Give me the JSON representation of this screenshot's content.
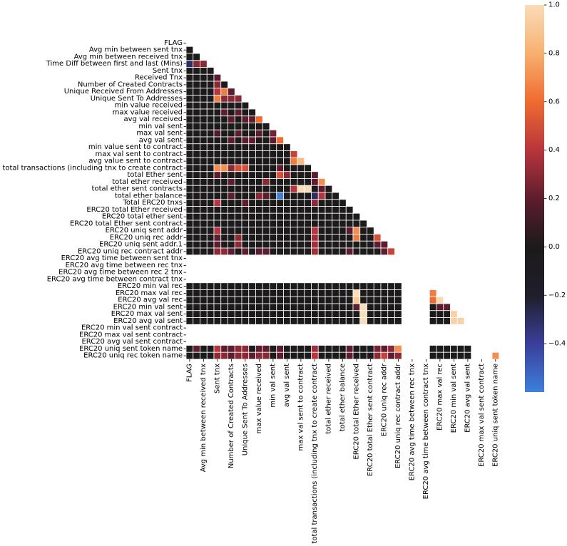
{
  "chart_data": {
    "type": "heatmap",
    "title": "",
    "variables": [
      "FLAG",
      "Avg min between sent tnx",
      "Avg min between received tnx",
      "Time Diff between first and last (Mins)",
      "Sent tnx",
      "Received Tnx",
      "Number of Created Contracts",
      "Unique Received From Addresses",
      "Unique Sent To Addresses",
      "min value received",
      "max value received",
      "avg val received",
      "min val sent",
      "max val sent",
      "avg val sent",
      "min value sent to contract",
      "max val sent to contract",
      "avg value sent to contract",
      "total transactions (including tnx to create contract",
      "total Ether sent",
      "total ether received",
      "total ether sent contracts",
      "total ether balance",
      "Total ERC20 tnxs",
      "ERC20 total Ether received",
      "ERC20 total ether sent",
      "ERC20 total Ether sent contract",
      "ERC20 uniq sent addr",
      "ERC20 uniq rec addr",
      "ERC20 uniq sent addr.1",
      "ERC20 uniq rec contract addr",
      "ERC20 avg time between sent tnx",
      "ERC20 avg time between rec tnx",
      "ERC20 avg time between rec 2 tnx",
      "ERC20 avg time between contract tnx",
      "ERC20 min val rec",
      "ERC20 max val rec",
      "ERC20 avg val rec",
      "ERC20 min val sent",
      "ERC20 max val sent",
      "ERC20 avg val sent",
      "ERC20 min val sent contract",
      "ERC20 max val sent contract",
      "ERC20 avg val sent contract",
      "ERC20 uniq sent token name",
      "ERC20 uniq rec token name"
    ],
    "x_tick_indices": [
      0,
      2,
      4,
      6,
      8,
      10,
      12,
      14,
      16,
      18,
      20,
      22,
      24,
      26,
      28,
      30,
      32,
      34,
      36,
      38,
      40,
      42,
      44
    ],
    "y_tick_indices": [
      0,
      1,
      2,
      3,
      4,
      5,
      6,
      7,
      8,
      9,
      10,
      11,
      12,
      13,
      14,
      15,
      16,
      17,
      18,
      19,
      20,
      21,
      22,
      23,
      24,
      25,
      26,
      27,
      28,
      29,
      30,
      31,
      32,
      33,
      34,
      35,
      36,
      37,
      38,
      39,
      40,
      41,
      42,
      43,
      44,
      45
    ],
    "mask": "upper triangle including diagonal",
    "nan_variables": [
      31,
      32,
      33,
      34,
      41,
      42,
      43
    ],
    "default_value": 0.0,
    "cells": [
      [
        3,
        0,
        -0.3
      ],
      [
        3,
        1,
        0.3
      ],
      [
        3,
        2,
        0.3
      ],
      [
        5,
        4,
        0.2
      ],
      [
        6,
        4,
        0.3
      ],
      [
        7,
        4,
        0.4
      ],
      [
        7,
        5,
        0.65
      ],
      [
        7,
        6,
        0.2
      ],
      [
        8,
        4,
        0.65
      ],
      [
        8,
        5,
        0.3
      ],
      [
        8,
        6,
        0.3
      ],
      [
        8,
        7,
        0.3
      ],
      [
        10,
        5,
        0.2
      ],
      [
        10,
        7,
        0.2
      ],
      [
        11,
        6,
        0.2
      ],
      [
        11,
        8,
        0.2
      ],
      [
        11,
        9,
        0.2
      ],
      [
        11,
        10,
        0.6
      ],
      [
        13,
        4,
        0.15
      ],
      [
        13,
        7,
        0.2
      ],
      [
        13,
        10,
        0.2
      ],
      [
        13,
        12,
        0.25
      ],
      [
        14,
        6,
        0.2
      ],
      [
        14,
        8,
        0.2
      ],
      [
        14,
        9,
        0.2
      ],
      [
        14,
        12,
        0.2
      ],
      [
        14,
        13,
        0.6
      ],
      [
        16,
        15,
        0.45
      ],
      [
        17,
        15,
        0.65
      ],
      [
        17,
        16,
        0.85
      ],
      [
        18,
        4,
        0.7
      ],
      [
        18,
        5,
        0.7
      ],
      [
        18,
        6,
        0.3
      ],
      [
        18,
        7,
        0.5
      ],
      [
        18,
        8,
        0.5
      ],
      [
        18,
        13,
        0.2
      ],
      [
        19,
        4,
        0.2
      ],
      [
        19,
        13,
        0.5
      ],
      [
        19,
        14,
        0.3
      ],
      [
        19,
        18,
        0.2
      ],
      [
        20,
        6,
        0.2
      ],
      [
        20,
        11,
        0.3
      ],
      [
        20,
        18,
        0.2
      ],
      [
        20,
        19,
        0.7
      ],
      [
        21,
        15,
        0.4
      ],
      [
        21,
        16,
        1.0
      ],
      [
        21,
        17,
        1.0
      ],
      [
        21,
        19,
        0.2
      ],
      [
        22,
        6,
        0.2
      ],
      [
        22,
        10,
        0.3
      ],
      [
        22,
        11,
        0.2
      ],
      [
        22,
        13,
        -0.6
      ],
      [
        22,
        18,
        -0.3
      ],
      [
        22,
        19,
        0.4
      ],
      [
        23,
        4,
        0.4
      ],
      [
        23,
        8,
        0.2
      ],
      [
        23,
        18,
        0.3
      ],
      [
        27,
        4,
        0.4
      ],
      [
        27,
        18,
        0.4
      ],
      [
        27,
        23,
        0.2
      ],
      [
        27,
        24,
        0.7
      ],
      [
        28,
        4,
        0.2
      ],
      [
        28,
        7,
        0.3
      ],
      [
        28,
        18,
        0.35
      ],
      [
        28,
        24,
        0.65
      ],
      [
        28,
        27,
        0.5
      ],
      [
        29,
        4,
        0.2
      ],
      [
        29,
        7,
        0.3
      ],
      [
        29,
        18,
        0.35
      ],
      [
        29,
        27,
        0.2
      ],
      [
        29,
        28,
        0.2
      ],
      [
        30,
        4,
        0.3
      ],
      [
        30,
        5,
        0.3
      ],
      [
        30,
        6,
        0.2
      ],
      [
        30,
        8,
        0.2
      ],
      [
        30,
        10,
        0.2
      ],
      [
        30,
        11,
        0.2
      ],
      [
        30,
        18,
        0.35
      ],
      [
        30,
        23,
        0.2
      ],
      [
        30,
        28,
        0.2
      ],
      [
        30,
        29,
        0.45
      ],
      [
        36,
        24,
        1.0
      ],
      [
        36,
        35,
        0.65
      ],
      [
        37,
        24,
        0.9
      ],
      [
        37,
        35,
        0.6
      ],
      [
        37,
        36,
        0.98
      ],
      [
        38,
        24,
        0.2
      ],
      [
        38,
        25,
        1.0
      ],
      [
        38,
        36,
        0.2
      ],
      [
        38,
        37,
        0.2
      ],
      [
        39,
        25,
        1.0
      ],
      [
        39,
        38,
        0.95
      ],
      [
        40,
        25,
        1.0
      ],
      [
        40,
        38,
        0.95
      ],
      [
        40,
        39,
        0.95
      ],
      [
        44,
        1,
        0.2
      ],
      [
        44,
        4,
        0.4
      ],
      [
        44,
        5,
        0.2
      ],
      [
        44,
        6,
        0.2
      ],
      [
        44,
        7,
        0.3
      ],
      [
        44,
        8,
        0.3
      ],
      [
        44,
        10,
        0.2
      ],
      [
        44,
        11,
        0.2
      ],
      [
        44,
        13,
        0.2
      ],
      [
        44,
        18,
        0.35
      ],
      [
        44,
        23,
        0.2
      ],
      [
        44,
        27,
        0.25
      ],
      [
        44,
        28,
        0.2
      ],
      [
        44,
        29,
        0.3
      ],
      [
        44,
        30,
        0.7
      ],
      [
        45,
        4,
        0.3
      ],
      [
        45,
        5,
        0.3
      ],
      [
        45,
        6,
        0.2
      ],
      [
        45,
        7,
        0.3
      ],
      [
        45,
        8,
        0.3
      ],
      [
        45,
        9,
        0.2
      ],
      [
        45,
        10,
        0.3
      ],
      [
        45,
        11,
        0.3
      ],
      [
        45,
        13,
        0.2
      ],
      [
        45,
        18,
        0.4
      ],
      [
        45,
        23,
        0.2
      ],
      [
        45,
        27,
        0.3
      ],
      [
        45,
        28,
        0.45
      ],
      [
        45,
        29,
        0.2
      ],
      [
        45,
        30,
        0.3
      ],
      [
        45,
        44,
        0.7
      ]
    ],
    "colorbar": {
      "min": -0.6,
      "max": 1.0,
      "ticks": [
        1.0,
        0.8,
        0.6,
        0.4,
        0.2,
        0.0,
        -0.2,
        -0.4
      ],
      "tick_labels": [
        "1.0",
        "0.8",
        "0.6",
        "0.4",
        "0.2",
        "0.0",
        "−0.2",
        "−0.4"
      ],
      "colormap": "icefire",
      "color_stops": [
        "#3d7fdc",
        "#3a3f9a",
        "#1f1e2a",
        "#1c1a1b",
        "#5e1d2e",
        "#b8353d",
        "#ef6b30",
        "#f7b070",
        "#fadcb8"
      ]
    },
    "cell_gridline_color": "#ffffff",
    "nan_color": "#ffffff"
  }
}
